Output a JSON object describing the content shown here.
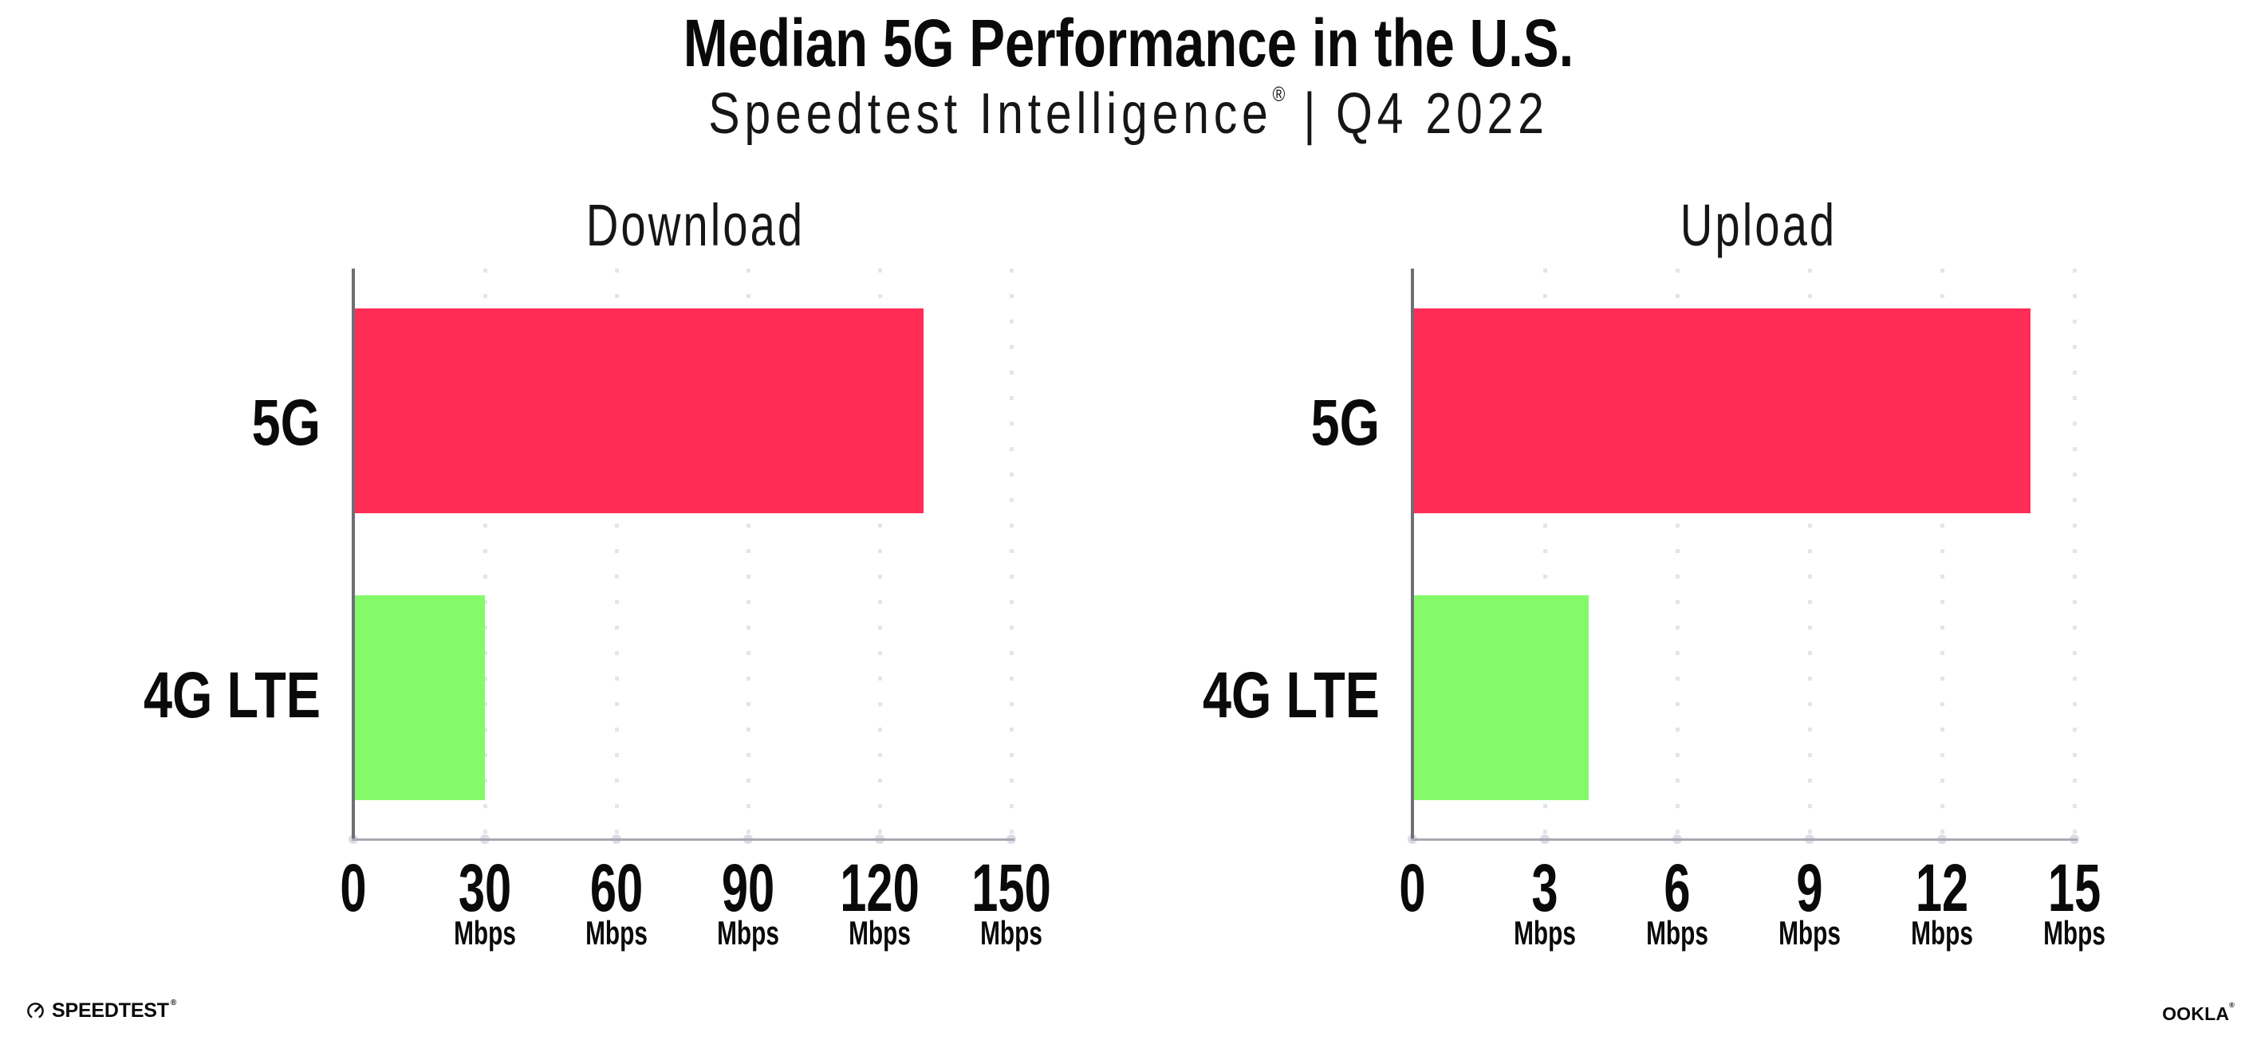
{
  "header": {
    "title": "Median 5G Performance in the U.S.",
    "brand": "Speedtest Intelligence",
    "registered": "®",
    "divider": "|",
    "period": "Q4 2022"
  },
  "chart_data": [
    {
      "type": "bar",
      "orientation": "horizontal",
      "title": "Download",
      "categories": [
        "5G",
        "4G LTE"
      ],
      "values": [
        130,
        30
      ],
      "unit": "Mbps",
      "xlim": [
        0,
        150
      ],
      "xticks": [
        0,
        30,
        60,
        90,
        120,
        150
      ],
      "colors": [
        "#FF2D55",
        "#84FA6B"
      ],
      "grid": "dotted-vertical",
      "legend": "none"
    },
    {
      "type": "bar",
      "orientation": "horizontal",
      "title": "Upload",
      "categories": [
        "5G",
        "4G LTE"
      ],
      "values": [
        14,
        4
      ],
      "unit": "Mbps",
      "xlim": [
        0,
        15
      ],
      "xticks": [
        0,
        3,
        6,
        9,
        12,
        15
      ],
      "colors": [
        "#FF2D55",
        "#84FA6B"
      ],
      "grid": "dotted-vertical",
      "legend": "none"
    }
  ],
  "footer": {
    "speedtest": "SPEEDTEST",
    "ookla": "OOKLA",
    "registered": "®"
  },
  "theme": {
    "bar_red": "#FF2D55",
    "bar_green": "#84FA6B",
    "grid": "#E4E4EC",
    "axis_x": "#A8A8B0",
    "axis_y": "#6E6E75",
    "text": "#0A0A0A"
  }
}
